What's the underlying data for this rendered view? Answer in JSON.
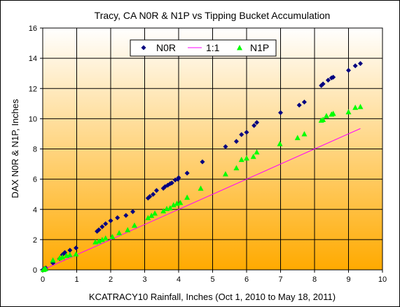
{
  "chart_data": {
    "type": "scatter",
    "title": "Tracy, CA N0R & N1P vs Tipping Bucket Accumulation",
    "xlabel": "KCATRACY10 Rainfall, Inches (Oct 1, 2010 to May 18, 2011)",
    "ylabel": "DAX N0R & N1P, Inches",
    "xlim": [
      0,
      10
    ],
    "ylim": [
      0,
      16
    ],
    "xticks": [
      "0",
      "1",
      "2",
      "3",
      "4",
      "5",
      "6",
      "7",
      "8",
      "9",
      "10"
    ],
    "yticks": [
      "0",
      "2",
      "4",
      "6",
      "8",
      "10",
      "12",
      "14",
      "16"
    ],
    "grid": true,
    "legend": "top-center",
    "series": [
      {
        "name": "N0R",
        "marker": "diamond",
        "color": "#000080",
        "x": [
          0.01,
          0.03,
          0.06,
          0.09,
          0.3,
          0.5,
          0.58,
          0.65,
          0.8,
          0.98,
          1.6,
          1.65,
          1.75,
          1.85,
          2.0,
          2.2,
          2.45,
          2.65,
          3.1,
          3.15,
          3.25,
          3.35,
          3.55,
          3.6,
          3.68,
          3.75,
          3.8,
          3.9,
          3.98,
          4.0,
          4.25,
          4.7,
          5.38,
          5.7,
          5.85,
          6.0,
          6.22,
          6.3,
          7.0,
          7.55,
          7.7,
          8.2,
          8.25,
          8.4,
          8.5,
          8.55,
          9.0,
          9.2,
          9.35
        ],
        "y": [
          0.02,
          0.05,
          0.08,
          0.12,
          0.45,
          0.75,
          1.0,
          1.15,
          1.3,
          1.45,
          2.55,
          2.65,
          2.85,
          3.05,
          3.25,
          3.45,
          3.6,
          3.85,
          4.75,
          4.85,
          5.0,
          5.25,
          5.4,
          5.5,
          5.6,
          5.7,
          5.75,
          5.95,
          6.0,
          6.1,
          6.4,
          7.15,
          8.15,
          8.5,
          8.95,
          9.1,
          9.55,
          9.75,
          10.4,
          10.9,
          11.1,
          12.2,
          12.3,
          12.55,
          12.7,
          12.75,
          13.2,
          13.5,
          13.65
        ]
      },
      {
        "name": "1:1",
        "marker": "line",
        "color": "#ff00ff",
        "x": [
          0,
          9.35
        ],
        "y": [
          0,
          9.35
        ]
      },
      {
        "name": "N1P",
        "marker": "triangle",
        "color": "#00ff00",
        "x": [
          0.02,
          0.05,
          0.08,
          0.3,
          0.5,
          0.58,
          0.7,
          0.8,
          0.98,
          1.55,
          1.65,
          1.75,
          1.85,
          2.05,
          2.25,
          2.5,
          2.7,
          3.1,
          3.2,
          3.3,
          3.55,
          3.65,
          3.75,
          3.85,
          3.95,
          4.05,
          4.25,
          4.65,
          5.38,
          5.7,
          5.85,
          6.0,
          6.2,
          6.3,
          6.98,
          7.5,
          7.7,
          8.2,
          8.25,
          8.35,
          8.5,
          8.55,
          9.0,
          9.2,
          9.35
        ],
        "y": [
          0.02,
          0.05,
          0.08,
          0.65,
          0.8,
          0.85,
          0.95,
          1.0,
          1.05,
          1.85,
          1.9,
          2.0,
          2.1,
          2.2,
          2.45,
          2.65,
          2.95,
          3.45,
          3.6,
          3.75,
          3.9,
          4.05,
          4.1,
          4.3,
          4.4,
          4.45,
          4.8,
          5.4,
          6.35,
          6.75,
          7.3,
          7.4,
          7.5,
          7.8,
          8.35,
          8.75,
          9.0,
          9.9,
          9.95,
          10.2,
          10.3,
          10.35,
          10.45,
          10.75,
          10.8
        ]
      }
    ]
  }
}
